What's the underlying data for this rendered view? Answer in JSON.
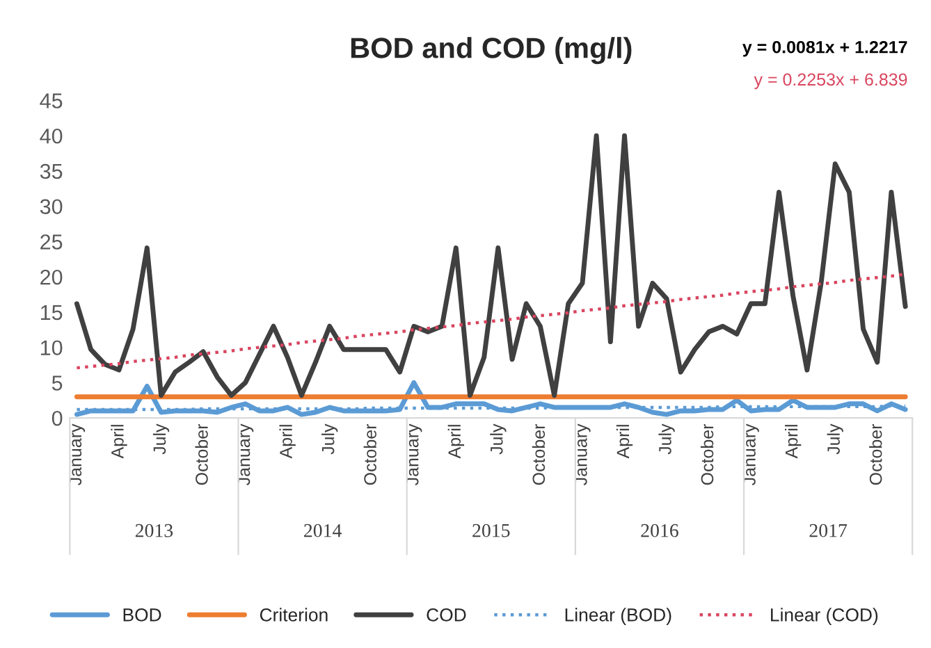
{
  "chart_data": {
    "type": "line",
    "title": "BOD and COD (mg/l)",
    "categories": [
      "January",
      null,
      null,
      "April",
      null,
      null,
      "July",
      null,
      null,
      "October",
      null,
      null,
      "January",
      null,
      null,
      "April",
      null,
      null,
      "July",
      null,
      null,
      "October",
      null,
      null,
      "January",
      null,
      null,
      "April",
      null,
      null,
      "July",
      null,
      null,
      "October",
      null,
      null,
      "January",
      null,
      null,
      "April",
      null,
      null,
      "July",
      null,
      null,
      "October",
      null,
      null,
      "January",
      null,
      null,
      "April",
      null,
      null,
      "July",
      null,
      null,
      "October",
      null,
      null
    ],
    "annotations": [
      "y = 0.0081x + 1.2217",
      "y = 0.2253x + 6.839",
      "2013",
      "2014",
      "2015",
      "2016",
      "2017"
    ],
    "ylim": [
      0,
      45
    ],
    "yticks": [
      0,
      5,
      10,
      15,
      20,
      25,
      30,
      35,
      40,
      45
    ],
    "grid": false,
    "legend": "bottom",
    "series": [
      {
        "name": "BOD",
        "color": "#5b9bd5",
        "values": [
          0.5,
          1,
          1,
          1,
          1,
          4.5,
          0.8,
          1,
          1,
          1,
          0.8,
          1.5,
          2,
          1,
          1,
          1.5,
          0.5,
          0.8,
          1.5,
          1,
          1,
          1,
          1,
          1.2,
          5,
          1.5,
          1.5,
          2,
          2,
          2,
          1.2,
          1,
          1.5,
          2,
          1.5,
          1.5,
          1.5,
          1.5,
          1.5,
          2,
          1.5,
          0.8,
          0.5,
          1,
          1,
          1.2,
          1.2,
          2.5,
          1,
          1.2,
          1.2,
          2.5,
          1.5,
          1.5,
          1.5,
          2,
          2,
          1,
          2,
          1.2
        ]
      },
      {
        "name": "Criterion",
        "color": "#ed7d31",
        "values": [
          3,
          3,
          3,
          3,
          3,
          3,
          3,
          3,
          3,
          3,
          3,
          3,
          3,
          3,
          3,
          3,
          3,
          3,
          3,
          3,
          3,
          3,
          3,
          3,
          3,
          3,
          3,
          3,
          3,
          3,
          3,
          3,
          3,
          3,
          3,
          3,
          3,
          3,
          3,
          3,
          3,
          3,
          3,
          3,
          3,
          3,
          3,
          3,
          3,
          3,
          3,
          3,
          3,
          3,
          3,
          3,
          3,
          3,
          3,
          3
        ]
      },
      {
        "name": "COD",
        "color": "#404040",
        "values": [
          16.2,
          9.7,
          7.6,
          6.8,
          12.6,
          24.1,
          3.2,
          6.5,
          7.9,
          9.4,
          5.8,
          3.2,
          5.0,
          9.0,
          13.0,
          8.6,
          3.2,
          7.9,
          13.0,
          9.7,
          9.7,
          9.7,
          9.7,
          6.5,
          13.0,
          12.2,
          13.0,
          24.1,
          3.2,
          8.6,
          24.1,
          8.3,
          16.2,
          13.0,
          3.2,
          16.2,
          19.1,
          40.0,
          10.8,
          40.0,
          13.0,
          19.1,
          16.9,
          6.5,
          9.7,
          12.2,
          13.0,
          11.9,
          16.2,
          16.2,
          32.0,
          17.3,
          6.8,
          19.1,
          36.0,
          32.0,
          12.6,
          7.9,
          32.0,
          15.8
        ]
      },
      {
        "name": "Linear (BOD)",
        "color": "#5b9bd5",
        "line_style": "dotted",
        "values": [
          1.2,
          1.2,
          1.2,
          1.2,
          1.2,
          1.2,
          1.2,
          1.2,
          1.2,
          1.3,
          1.3,
          1.3,
          1.3,
          1.3,
          1.3,
          1.3,
          1.3,
          1.3,
          1.3,
          1.3,
          1.3,
          1.4,
          1.4,
          1.4,
          1.4,
          1.4,
          1.4,
          1.4,
          1.4,
          1.4,
          1.4,
          1.4,
          1.4,
          1.4,
          1.5,
          1.5,
          1.5,
          1.5,
          1.5,
          1.5,
          1.5,
          1.5,
          1.5,
          1.5,
          1.5,
          1.5,
          1.6,
          1.6,
          1.6,
          1.6,
          1.6,
          1.6,
          1.6,
          1.6,
          1.6,
          1.6,
          1.6,
          1.6,
          1.7,
          1.7
        ]
      },
      {
        "name": "Linear (COD)",
        "color": "#d9455f",
        "line_style": "dotted",
        "values": [
          7.1,
          7.3,
          7.5,
          7.7,
          8.0,
          8.2,
          8.4,
          8.6,
          8.9,
          9.1,
          9.3,
          9.5,
          9.8,
          10.0,
          10.2,
          10.4,
          10.7,
          10.9,
          11.1,
          11.3,
          11.6,
          11.8,
          12.0,
          12.2,
          12.5,
          12.7,
          12.9,
          13.1,
          13.4,
          13.6,
          13.8,
          14.0,
          14.3,
          14.5,
          14.7,
          14.9,
          15.2,
          15.4,
          15.6,
          15.9,
          16.1,
          16.3,
          16.5,
          16.8,
          17.0,
          17.2,
          17.4,
          17.7,
          17.9,
          18.1,
          18.3,
          18.6,
          18.8,
          19.0,
          19.2,
          19.5,
          19.7,
          19.9,
          20.1,
          20.4
        ]
      }
    ]
  }
}
